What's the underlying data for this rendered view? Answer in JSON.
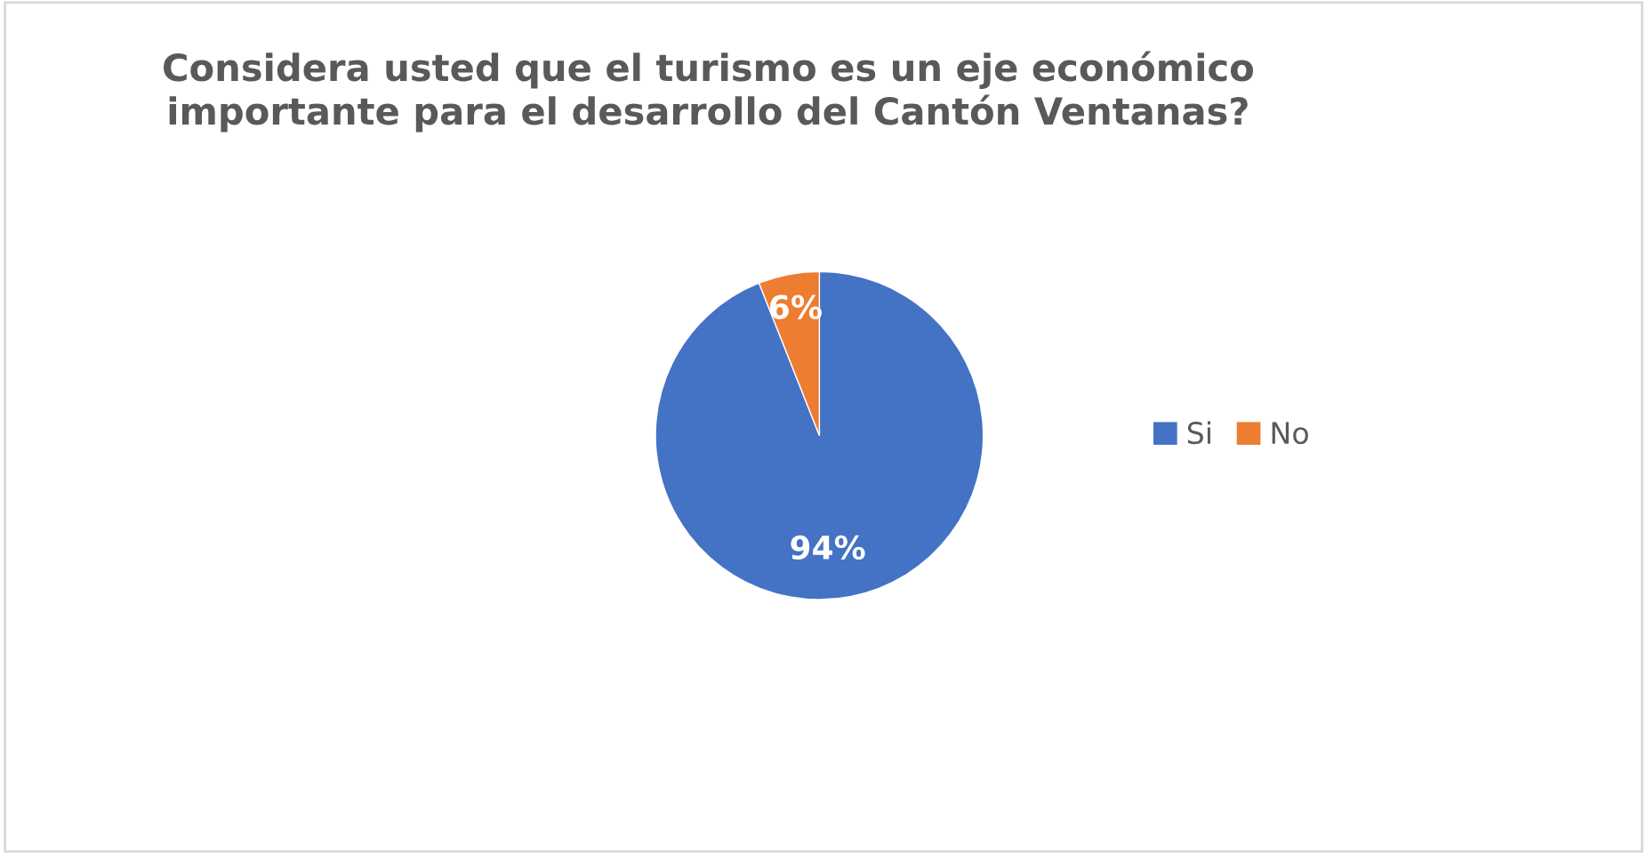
{
  "chart_data": {
    "type": "pie",
    "title": "Considera usted que el turismo es un eje económico\nimportante para el desarrollo del Cantón Ventanas?",
    "categories": [
      "Si",
      "No"
    ],
    "values": [
      94,
      6
    ],
    "colors": [
      "#4472c4",
      "#ed7d31"
    ],
    "value_labels": [
      "94%",
      "6%"
    ],
    "legend": "right"
  }
}
